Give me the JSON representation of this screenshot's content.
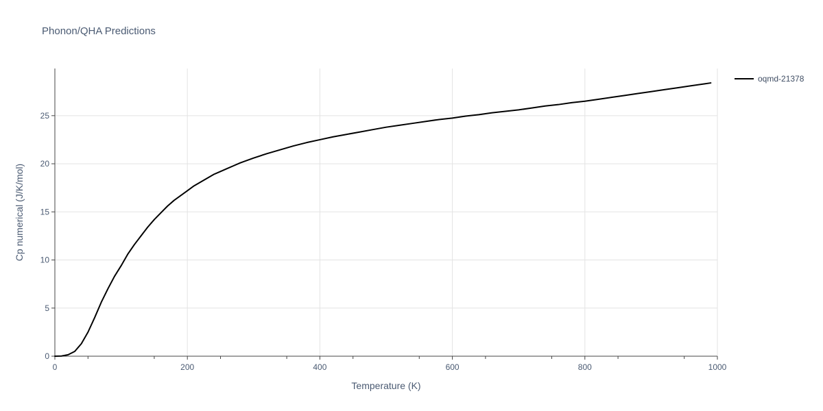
{
  "chart_data": {
    "type": "line",
    "title": "Phonon/QHA Predictions",
    "xlabel": "Temperature (K)",
    "ylabel": "Cp numerical (J/K/mol)",
    "xlim": [
      0,
      1000
    ],
    "ylim": [
      0,
      29.9
    ],
    "xticks": [
      0,
      200,
      400,
      600,
      800,
      1000
    ],
    "yticks": [
      0,
      5,
      10,
      15,
      20,
      25
    ],
    "xtick_labels": [
      "0",
      "200",
      "400",
      "600",
      "800",
      "1000"
    ],
    "ytick_labels": [
      "0",
      "5",
      "10",
      "15",
      "20",
      "25"
    ],
    "grid": true,
    "legend_position": "top-right",
    "series": [
      {
        "name": "oqmd-21378",
        "color": "#000000",
        "x": [
          0,
          10,
          20,
          30,
          40,
          50,
          60,
          70,
          80,
          90,
          100,
          110,
          120,
          130,
          140,
          150,
          160,
          170,
          180,
          190,
          200,
          210,
          220,
          230,
          240,
          250,
          260,
          270,
          280,
          290,
          300,
          320,
          340,
          360,
          380,
          400,
          420,
          440,
          460,
          480,
          500,
          520,
          540,
          560,
          580,
          600,
          620,
          640,
          660,
          680,
          700,
          720,
          740,
          760,
          780,
          800,
          820,
          840,
          860,
          880,
          900,
          920,
          940,
          960,
          980,
          990
        ],
        "y": [
          0,
          0.02,
          0.15,
          0.5,
          1.3,
          2.5,
          4.0,
          5.6,
          7.0,
          8.3,
          9.4,
          10.6,
          11.6,
          12.5,
          13.4,
          14.2,
          14.9,
          15.6,
          16.2,
          16.7,
          17.2,
          17.7,
          18.1,
          18.5,
          18.9,
          19.2,
          19.5,
          19.8,
          20.1,
          20.35,
          20.6,
          21.05,
          21.45,
          21.85,
          22.2,
          22.5,
          22.8,
          23.05,
          23.3,
          23.55,
          23.8,
          24.0,
          24.2,
          24.4,
          24.6,
          24.75,
          24.95,
          25.1,
          25.3,
          25.45,
          25.6,
          25.8,
          26.0,
          26.15,
          26.35,
          26.5,
          26.7,
          26.9,
          27.1,
          27.3,
          27.5,
          27.7,
          27.9,
          28.1,
          28.3,
          28.4
        ]
      }
    ]
  }
}
